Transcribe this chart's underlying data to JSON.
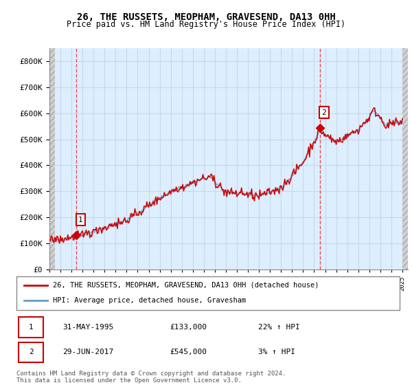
{
  "title1": "26, THE RUSSETS, MEOPHAM, GRAVESEND, DA13 0HH",
  "title2": "Price paid vs. HM Land Registry's House Price Index (HPI)",
  "ytick_vals": [
    0,
    100000,
    200000,
    300000,
    400000,
    500000,
    600000,
    700000,
    800000
  ],
  "ylim": [
    0,
    850000
  ],
  "xlim_start": 1993.0,
  "xlim_end": 2025.5,
  "transaction1_x": 1995.417,
  "transaction1_y": 133000,
  "transaction1_label": "1",
  "transaction2_x": 2017.5,
  "transaction2_y": 545000,
  "transaction2_label": "2",
  "legend_line1": "26, THE RUSSETS, MEOPHAM, GRAVESEND, DA13 0HH (detached house)",
  "legend_line2": "HPI: Average price, detached house, Gravesham",
  "annotation1_date": "31-MAY-1995",
  "annotation1_price": "£133,000",
  "annotation1_hpi": "22% ↑ HPI",
  "annotation2_date": "29-JUN-2017",
  "annotation2_price": "£545,000",
  "annotation2_hpi": "3% ↑ HPI",
  "footer": "Contains HM Land Registry data © Crown copyright and database right 2024.\nThis data is licensed under the Open Government Licence v3.0.",
  "grid_color": "#c8d8e8",
  "bg_color": "#ddeeff",
  "hatch_bg": "#d0d0d0",
  "red_line_color": "#cc0000",
  "blue_line_color": "#6699cc",
  "dashed_red": "#ee3333"
}
